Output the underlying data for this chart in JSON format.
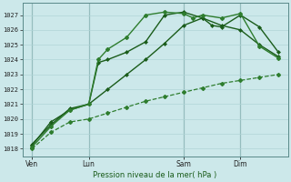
{
  "bg_color": "#cce8ea",
  "grid_color": "#b0d4d6",
  "line_color_dark": "#1a5c1a",
  "line_color_mid": "#2e7d2e",
  "xlabel": "Pression niveau de la mer( hPa )",
  "ylim": [
    1017.5,
    1027.8
  ],
  "yticks": [
    1018,
    1019,
    1020,
    1021,
    1022,
    1023,
    1024,
    1025,
    1026,
    1027
  ],
  "xtick_labels": [
    "Ven",
    "Lun",
    "Sam",
    "Dim"
  ],
  "xtick_positions": [
    0,
    6,
    16,
    22
  ],
  "xlim": [
    -1,
    27
  ],
  "vline_positions": [
    0,
    6,
    16,
    22
  ],
  "series1_x": [
    0,
    2,
    4,
    6,
    8,
    10,
    12,
    14,
    16,
    18,
    20,
    22,
    24,
    26
  ],
  "series1_y": [
    1018.0,
    1019.1,
    1019.8,
    1020.0,
    1020.4,
    1020.8,
    1021.2,
    1021.5,
    1021.8,
    1022.1,
    1022.4,
    1022.6,
    1022.8,
    1023.0
  ],
  "series2_x": [
    0,
    2,
    4,
    6,
    8,
    10,
    12,
    14,
    16,
    18,
    20,
    22,
    24,
    26
  ],
  "series2_y": [
    1018.2,
    1019.8,
    1020.6,
    1021.0,
    1022.0,
    1023.0,
    1024.0,
    1025.1,
    1026.3,
    1026.8,
    1026.3,
    1026.0,
    1025.0,
    1024.2
  ],
  "series3_x": [
    0,
    2,
    4,
    6,
    7,
    8,
    10,
    12,
    14,
    16,
    18,
    19,
    20,
    22,
    24,
    26
  ],
  "series3_y": [
    1018.3,
    1019.6,
    1020.7,
    1021.0,
    1023.8,
    1024.0,
    1024.5,
    1025.2,
    1027.0,
    1027.2,
    1026.8,
    1026.3,
    1026.2,
    1027.0,
    1026.2,
    1024.5
  ],
  "series4_x": [
    0,
    2,
    4,
    6,
    7,
    8,
    10,
    12,
    14,
    16,
    17,
    18,
    20,
    22,
    24,
    26
  ],
  "series4_y": [
    1018.1,
    1019.5,
    1020.6,
    1021.0,
    1024.0,
    1024.7,
    1025.5,
    1027.0,
    1027.2,
    1027.1,
    1026.8,
    1027.0,
    1026.8,
    1027.1,
    1024.9,
    1024.1
  ]
}
